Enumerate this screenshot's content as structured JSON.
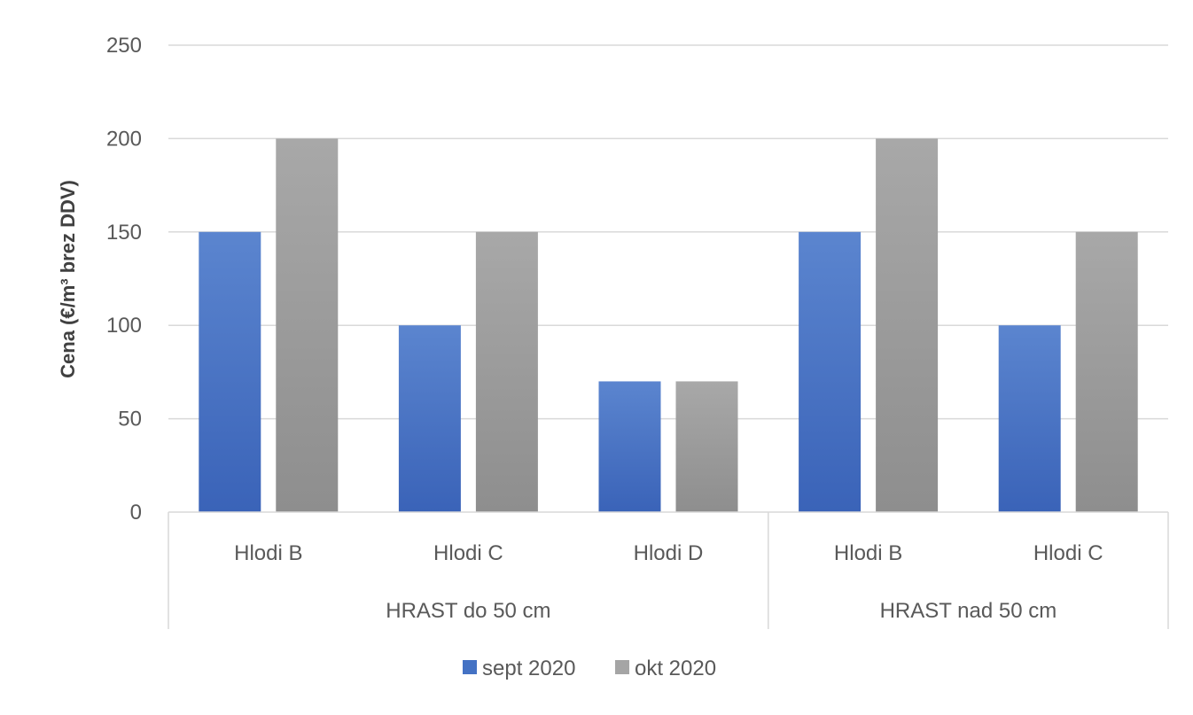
{
  "chart_data": {
    "type": "bar",
    "title": "",
    "ylabel": "Cena (€/m³ brez DDV)",
    "xlabel": "",
    "ylim": [
      0,
      250
    ],
    "yticks": [
      0,
      50,
      100,
      150,
      200,
      250
    ],
    "grid": true,
    "legend_position": "bottom",
    "groups": [
      {
        "label": "HRAST do 50 cm",
        "categories": [
          "Hlodi B",
          "Hlodi C",
          "Hlodi D"
        ]
      },
      {
        "label": "HRAST nad 50 cm",
        "categories": [
          "Hlodi B",
          "Hlodi C"
        ]
      }
    ],
    "categories": [
      "Hlodi B",
      "Hlodi C",
      "Hlodi D",
      "Hlodi B",
      "Hlodi C"
    ],
    "series": [
      {
        "name": "sept 2020",
        "color": "#4472C4",
        "values": [
          150,
          100,
          70,
          150,
          100
        ]
      },
      {
        "name": "okt 2020",
        "color": "#A5A5A5",
        "values": [
          200,
          150,
          70,
          200,
          150
        ]
      }
    ]
  }
}
